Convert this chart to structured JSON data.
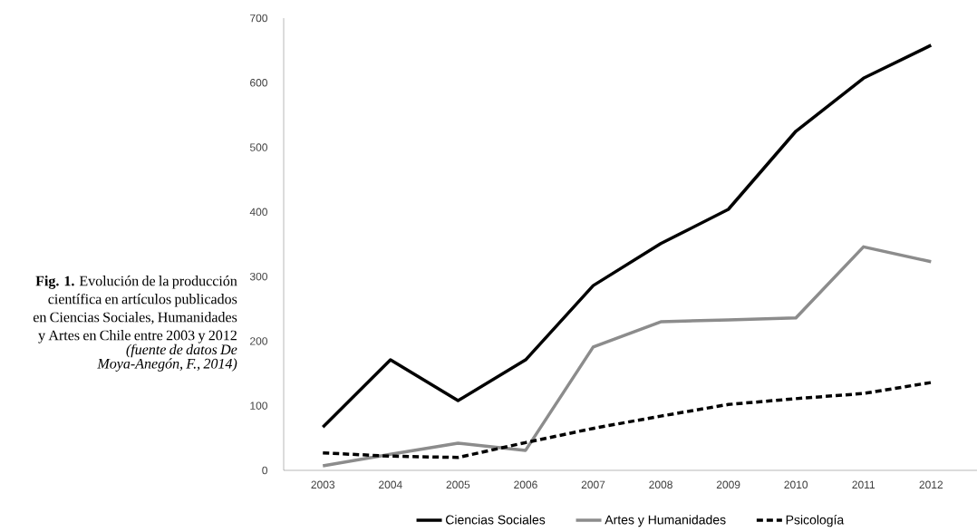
{
  "chart_data": {
    "type": "line",
    "title": "**Fig. 1.** Evolución de la producción científica en artículos publicados en Ciencias Sociales, Humanidades y Artes en Chile entre 2003 y 2012",
    "annotations": [
      "(fuente de datos De Moya-Anegón, F., 2014)"
    ],
    "categories": [
      "2003",
      "2004",
      "2005",
      "2006",
      "2007",
      "2008",
      "2009",
      "2010",
      "2011",
      "2012"
    ],
    "ylim": [
      0,
      700
    ],
    "yticks": [
      0,
      100,
      200,
      300,
      400,
      500,
      600,
      700
    ],
    "legend": "bottom",
    "series": [
      {
        "name": "Ciencias Sociales",
        "color": "#000000",
        "line_style": "solid",
        "values": [
          67,
          171,
          108,
          171,
          286,
          351,
          404,
          525,
          607,
          658
        ]
      },
      {
        "name": "Artes y Humanidades",
        "color": "#8c8c8c",
        "line_style": "solid",
        "values": [
          7,
          25,
          42,
          31,
          191,
          230,
          233,
          236,
          346,
          323
        ]
      },
      {
        "name": "Psicología",
        "color": "#000000",
        "line_style": "dashed",
        "values": [
          27,
          22,
          20,
          43,
          65,
          84,
          102,
          111,
          119,
          136
        ]
      }
    ]
  }
}
